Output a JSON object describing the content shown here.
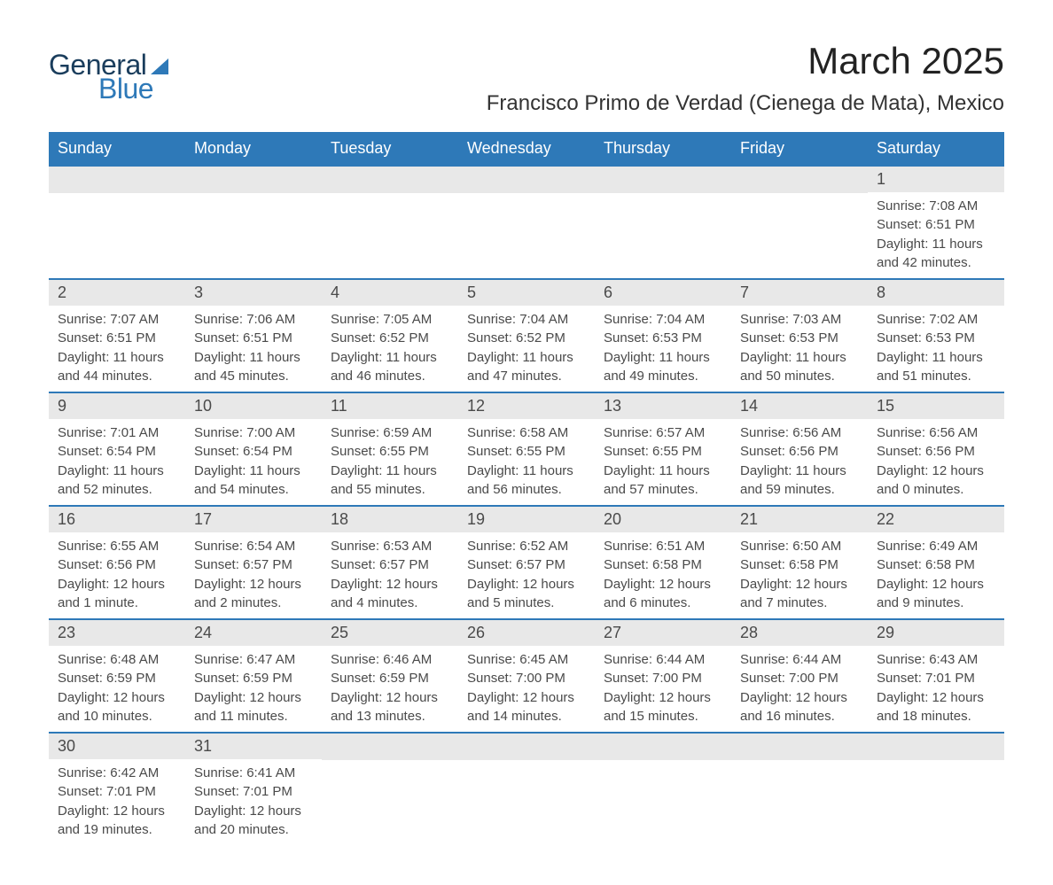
{
  "logo": {
    "general": "General",
    "blue": "Blue"
  },
  "title": "March 2025",
  "location": "Francisco Primo de Verdad (Cienega de Mata), Mexico",
  "colors": {
    "header_bg": "#2e79b8",
    "header_text": "#ffffff",
    "day_number_bg": "#e8e8e8",
    "text": "#4a4a4a",
    "border": "#2e79b8",
    "logo_dark": "#1a3d5c",
    "logo_blue": "#2e79b8"
  },
  "weekdays": [
    "Sunday",
    "Monday",
    "Tuesday",
    "Wednesday",
    "Thursday",
    "Friday",
    "Saturday"
  ],
  "weeks": [
    [
      {
        "empty": true
      },
      {
        "empty": true
      },
      {
        "empty": true
      },
      {
        "empty": true
      },
      {
        "empty": true
      },
      {
        "empty": true
      },
      {
        "day": "1",
        "sunrise": "Sunrise: 7:08 AM",
        "sunset": "Sunset: 6:51 PM",
        "daylight1": "Daylight: 11 hours",
        "daylight2": "and 42 minutes."
      }
    ],
    [
      {
        "day": "2",
        "sunrise": "Sunrise: 7:07 AM",
        "sunset": "Sunset: 6:51 PM",
        "daylight1": "Daylight: 11 hours",
        "daylight2": "and 44 minutes."
      },
      {
        "day": "3",
        "sunrise": "Sunrise: 7:06 AM",
        "sunset": "Sunset: 6:51 PM",
        "daylight1": "Daylight: 11 hours",
        "daylight2": "and 45 minutes."
      },
      {
        "day": "4",
        "sunrise": "Sunrise: 7:05 AM",
        "sunset": "Sunset: 6:52 PM",
        "daylight1": "Daylight: 11 hours",
        "daylight2": "and 46 minutes."
      },
      {
        "day": "5",
        "sunrise": "Sunrise: 7:04 AM",
        "sunset": "Sunset: 6:52 PM",
        "daylight1": "Daylight: 11 hours",
        "daylight2": "and 47 minutes."
      },
      {
        "day": "6",
        "sunrise": "Sunrise: 7:04 AM",
        "sunset": "Sunset: 6:53 PM",
        "daylight1": "Daylight: 11 hours",
        "daylight2": "and 49 minutes."
      },
      {
        "day": "7",
        "sunrise": "Sunrise: 7:03 AM",
        "sunset": "Sunset: 6:53 PM",
        "daylight1": "Daylight: 11 hours",
        "daylight2": "and 50 minutes."
      },
      {
        "day": "8",
        "sunrise": "Sunrise: 7:02 AM",
        "sunset": "Sunset: 6:53 PM",
        "daylight1": "Daylight: 11 hours",
        "daylight2": "and 51 minutes."
      }
    ],
    [
      {
        "day": "9",
        "sunrise": "Sunrise: 7:01 AM",
        "sunset": "Sunset: 6:54 PM",
        "daylight1": "Daylight: 11 hours",
        "daylight2": "and 52 minutes."
      },
      {
        "day": "10",
        "sunrise": "Sunrise: 7:00 AM",
        "sunset": "Sunset: 6:54 PM",
        "daylight1": "Daylight: 11 hours",
        "daylight2": "and 54 minutes."
      },
      {
        "day": "11",
        "sunrise": "Sunrise: 6:59 AM",
        "sunset": "Sunset: 6:55 PM",
        "daylight1": "Daylight: 11 hours",
        "daylight2": "and 55 minutes."
      },
      {
        "day": "12",
        "sunrise": "Sunrise: 6:58 AM",
        "sunset": "Sunset: 6:55 PM",
        "daylight1": "Daylight: 11 hours",
        "daylight2": "and 56 minutes."
      },
      {
        "day": "13",
        "sunrise": "Sunrise: 6:57 AM",
        "sunset": "Sunset: 6:55 PM",
        "daylight1": "Daylight: 11 hours",
        "daylight2": "and 57 minutes."
      },
      {
        "day": "14",
        "sunrise": "Sunrise: 6:56 AM",
        "sunset": "Sunset: 6:56 PM",
        "daylight1": "Daylight: 11 hours",
        "daylight2": "and 59 minutes."
      },
      {
        "day": "15",
        "sunrise": "Sunrise: 6:56 AM",
        "sunset": "Sunset: 6:56 PM",
        "daylight1": "Daylight: 12 hours",
        "daylight2": "and 0 minutes."
      }
    ],
    [
      {
        "day": "16",
        "sunrise": "Sunrise: 6:55 AM",
        "sunset": "Sunset: 6:56 PM",
        "daylight1": "Daylight: 12 hours",
        "daylight2": "and 1 minute."
      },
      {
        "day": "17",
        "sunrise": "Sunrise: 6:54 AM",
        "sunset": "Sunset: 6:57 PM",
        "daylight1": "Daylight: 12 hours",
        "daylight2": "and 2 minutes."
      },
      {
        "day": "18",
        "sunrise": "Sunrise: 6:53 AM",
        "sunset": "Sunset: 6:57 PM",
        "daylight1": "Daylight: 12 hours",
        "daylight2": "and 4 minutes."
      },
      {
        "day": "19",
        "sunrise": "Sunrise: 6:52 AM",
        "sunset": "Sunset: 6:57 PM",
        "daylight1": "Daylight: 12 hours",
        "daylight2": "and 5 minutes."
      },
      {
        "day": "20",
        "sunrise": "Sunrise: 6:51 AM",
        "sunset": "Sunset: 6:58 PM",
        "daylight1": "Daylight: 12 hours",
        "daylight2": "and 6 minutes."
      },
      {
        "day": "21",
        "sunrise": "Sunrise: 6:50 AM",
        "sunset": "Sunset: 6:58 PM",
        "daylight1": "Daylight: 12 hours",
        "daylight2": "and 7 minutes."
      },
      {
        "day": "22",
        "sunrise": "Sunrise: 6:49 AM",
        "sunset": "Sunset: 6:58 PM",
        "daylight1": "Daylight: 12 hours",
        "daylight2": "and 9 minutes."
      }
    ],
    [
      {
        "day": "23",
        "sunrise": "Sunrise: 6:48 AM",
        "sunset": "Sunset: 6:59 PM",
        "daylight1": "Daylight: 12 hours",
        "daylight2": "and 10 minutes."
      },
      {
        "day": "24",
        "sunrise": "Sunrise: 6:47 AM",
        "sunset": "Sunset: 6:59 PM",
        "daylight1": "Daylight: 12 hours",
        "daylight2": "and 11 minutes."
      },
      {
        "day": "25",
        "sunrise": "Sunrise: 6:46 AM",
        "sunset": "Sunset: 6:59 PM",
        "daylight1": "Daylight: 12 hours",
        "daylight2": "and 13 minutes."
      },
      {
        "day": "26",
        "sunrise": "Sunrise: 6:45 AM",
        "sunset": "Sunset: 7:00 PM",
        "daylight1": "Daylight: 12 hours",
        "daylight2": "and 14 minutes."
      },
      {
        "day": "27",
        "sunrise": "Sunrise: 6:44 AM",
        "sunset": "Sunset: 7:00 PM",
        "daylight1": "Daylight: 12 hours",
        "daylight2": "and 15 minutes."
      },
      {
        "day": "28",
        "sunrise": "Sunrise: 6:44 AM",
        "sunset": "Sunset: 7:00 PM",
        "daylight1": "Daylight: 12 hours",
        "daylight2": "and 16 minutes."
      },
      {
        "day": "29",
        "sunrise": "Sunrise: 6:43 AM",
        "sunset": "Sunset: 7:01 PM",
        "daylight1": "Daylight: 12 hours",
        "daylight2": "and 18 minutes."
      }
    ],
    [
      {
        "day": "30",
        "sunrise": "Sunrise: 6:42 AM",
        "sunset": "Sunset: 7:01 PM",
        "daylight1": "Daylight: 12 hours",
        "daylight2": "and 19 minutes."
      },
      {
        "day": "31",
        "sunrise": "Sunrise: 6:41 AM",
        "sunset": "Sunset: 7:01 PM",
        "daylight1": "Daylight: 12 hours",
        "daylight2": "and 20 minutes."
      },
      {
        "empty": true
      },
      {
        "empty": true
      },
      {
        "empty": true
      },
      {
        "empty": true
      },
      {
        "empty": true
      }
    ]
  ]
}
